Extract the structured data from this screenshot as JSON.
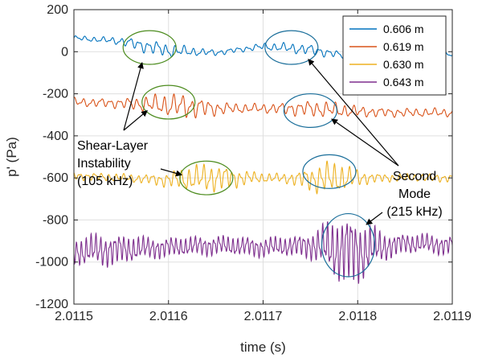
{
  "chart_data": {
    "type": "line",
    "xlabel": "time (s)",
    "ylabel": "p' (Pa)",
    "xlim": [
      2.0115,
      2.0119
    ],
    "ylim": [
      -1200,
      200
    ],
    "xticks": [
      2.0115,
      2.0116,
      2.0117,
      2.0118,
      2.0119
    ],
    "xtick_labels": [
      "2.0115",
      "2.0116",
      "2.0117",
      "2.0118",
      "2.0119"
    ],
    "yticks": [
      -1200,
      -1000,
      -800,
      -600,
      -400,
      -200,
      0,
      200
    ],
    "ytick_labels": [
      "-1200",
      "-1000",
      "-800",
      "-600",
      "-400",
      "-200",
      "0",
      "200"
    ],
    "grid": true,
    "legend_position": "top-right",
    "series": [
      {
        "name": "0.606 m",
        "color": "#0072bd",
        "x": [
          2.0115,
          2.01155,
          2.0116,
          2.01165,
          2.0117,
          2.01175,
          2.0118,
          2.01185,
          2.0119
        ],
        "y": [
          65,
          50,
          5,
          -5,
          25,
          10,
          -30,
          -10,
          -10
        ]
      },
      {
        "name": "0.619 m",
        "color": "#d95319",
        "x": [
          2.0115,
          2.01155,
          2.0116,
          2.01165,
          2.0117,
          2.01175,
          2.0118,
          2.01185,
          2.0119
        ],
        "y": [
          -240,
          -245,
          -255,
          -270,
          -270,
          -270,
          -285,
          -290,
          -290
        ]
      },
      {
        "name": "0.630 m",
        "color": "#edb120",
        "x": [
          2.0115,
          2.01155,
          2.0116,
          2.01165,
          2.0117,
          2.01175,
          2.0118,
          2.01185,
          2.0119
        ],
        "y": [
          -590,
          -600,
          -610,
          -600,
          -600,
          -605,
          -600,
          -600,
          -600
        ]
      },
      {
        "name": "0.643 m",
        "color": "#7e2f8e",
        "x": [
          2.0115,
          2.01155,
          2.0116,
          2.01165,
          2.0117,
          2.01175,
          2.0118,
          2.01185,
          2.0119
        ],
        "y": [
          -950,
          -940,
          -930,
          -920,
          -930,
          -920,
          -950,
          -910,
          -920
        ]
      }
    ],
    "annotations": [
      {
        "lines": [
          "Shear-Layer",
          "Instability",
          "(105 kHz)"
        ],
        "color_circles": "#4d8c1f",
        "circles": [
          {
            "x": 2.01158,
            "y": 20,
            "rx": 2.8e-05,
            "ry": 80
          },
          {
            "x": 2.0116,
            "y": -240,
            "rx": 2.8e-05,
            "ry": 80
          },
          {
            "x": 2.01164,
            "y": -600,
            "rx": 2.8e-05,
            "ry": 80
          }
        ]
      },
      {
        "lines": [
          "Second",
          "Mode",
          "(215 kHz)"
        ],
        "color_circles": "#1a6e9a",
        "circles": [
          {
            "x": 2.01173,
            "y": 20,
            "rx": 2.8e-05,
            "ry": 80
          },
          {
            "x": 2.01175,
            "y": -280,
            "rx": 2.8e-05,
            "ry": 80
          },
          {
            "x": 2.01177,
            "y": -570,
            "rx": 2.8e-05,
            "ry": 80
          },
          {
            "x": 2.01179,
            "y": -920,
            "rx": 2.8e-05,
            "ry": 150
          }
        ]
      }
    ]
  }
}
